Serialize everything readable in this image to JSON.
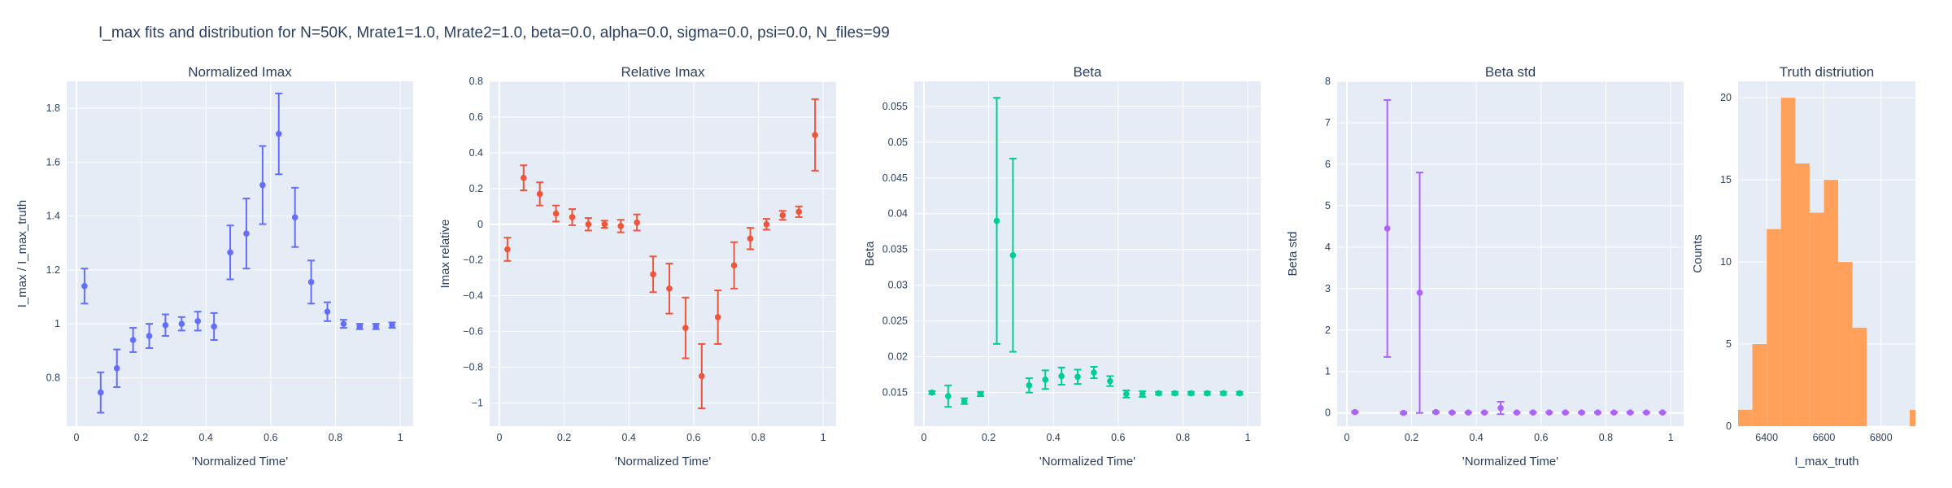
{
  "title": "I_max fits and distribution for N=50K, Mrate1=1.0, Mrate2=1.0, beta=0.0, alpha=0.0, sigma=0.0,  psi=0.0, N_files=99",
  "colors": {
    "background": "#e5ecf6",
    "grid": "#ffffff",
    "text": "#2a3f5f"
  },
  "chart_data": [
    {
      "type": "scatter",
      "title": "Normalized Imax",
      "xlabel": "'Normalized Time'",
      "ylabel": "I_max / I_max_truth",
      "xlim": [
        -0.03,
        1.04
      ],
      "ylim": [
        0.62,
        1.9
      ],
      "xticks": [
        0,
        0.2,
        0.4,
        0.6,
        0.8,
        1
      ],
      "xtick_labels": [
        "0",
        "0.2",
        "0.4",
        "0.6",
        "0.8",
        "1"
      ],
      "yticks": [
        0.8,
        1,
        1.2,
        1.4,
        1.6,
        1.8
      ],
      "ytick_labels": [
        "0.8",
        "1",
        "1.2",
        "1.4",
        "1.6",
        "1.8"
      ],
      "color": "#636efa",
      "x": [
        0.025,
        0.075,
        0.125,
        0.175,
        0.225,
        0.275,
        0.325,
        0.375,
        0.425,
        0.475,
        0.525,
        0.575,
        0.625,
        0.675,
        0.725,
        0.775,
        0.825,
        0.875,
        0.925,
        0.975
      ],
      "y": [
        1.14,
        0.745,
        0.835,
        0.94,
        0.955,
        0.995,
        1.0,
        1.01,
        0.99,
        1.265,
        1.335,
        1.515,
        1.705,
        1.395,
        1.155,
        1.045,
        1.0,
        0.99,
        0.99,
        0.995
      ],
      "error": [
        0.065,
        0.075,
        0.07,
        0.045,
        0.045,
        0.04,
        0.025,
        0.035,
        0.05,
        0.1,
        0.13,
        0.145,
        0.15,
        0.11,
        0.08,
        0.035,
        0.015,
        0.01,
        0.01,
        0.01
      ]
    },
    {
      "type": "scatter",
      "title": "Relative Imax",
      "xlabel": "'Normalized Time'",
      "ylabel": "Imax relative",
      "xlim": [
        -0.03,
        1.04
      ],
      "ylim": [
        -1.13,
        0.8
      ],
      "xticks": [
        0,
        0.2,
        0.4,
        0.6,
        0.8,
        1
      ],
      "xtick_labels": [
        "0",
        "0.2",
        "0.4",
        "0.6",
        "0.8",
        "1"
      ],
      "yticks": [
        -1,
        -0.8,
        -0.6,
        -0.4,
        -0.2,
        0,
        0.2,
        0.4,
        0.6,
        0.8
      ],
      "ytick_labels": [
        "−1",
        "−0.8",
        "−0.6",
        "−0.4",
        "−0.2",
        "0",
        "0.2",
        "0.4",
        "0.6",
        "0.8"
      ],
      "color": "#ef553b",
      "x": [
        0.025,
        0.075,
        0.125,
        0.175,
        0.225,
        0.275,
        0.325,
        0.375,
        0.425,
        0.475,
        0.525,
        0.575,
        0.625,
        0.675,
        0.725,
        0.775,
        0.825,
        0.875,
        0.925,
        0.975
      ],
      "y": [
        -0.14,
        0.26,
        0.17,
        0.06,
        0.04,
        0.0,
        0.0,
        -0.01,
        0.01,
        -0.28,
        -0.36,
        -0.58,
        -0.85,
        -0.52,
        -0.23,
        -0.08,
        0.0,
        0.05,
        0.07,
        0.5
      ],
      "error": [
        0.065,
        0.07,
        0.065,
        0.045,
        0.045,
        0.035,
        0.02,
        0.035,
        0.045,
        0.1,
        0.14,
        0.17,
        0.18,
        0.15,
        0.13,
        0.06,
        0.03,
        0.025,
        0.03,
        0.2
      ]
    },
    {
      "type": "scatter",
      "title": "Beta",
      "xlabel": "'Normalized Time'",
      "ylabel": "Beta",
      "xlim": [
        -0.03,
        1.04
      ],
      "ylim": [
        0.0103,
        0.0585
      ],
      "xticks": [
        0,
        0.2,
        0.4,
        0.6,
        0.8,
        1
      ],
      "xtick_labels": [
        "0",
        "0.2",
        "0.4",
        "0.6",
        "0.8",
        "1"
      ],
      "yticks": [
        0.015,
        0.02,
        0.025,
        0.03,
        0.035,
        0.04,
        0.045,
        0.05,
        0.055
      ],
      "ytick_labels": [
        "0.015",
        "0.02",
        "0.025",
        "0.03",
        "0.035",
        "0.04",
        "0.045",
        "0.05",
        "0.055"
      ],
      "color": "#00cc96",
      "x": [
        0.025,
        0.075,
        0.125,
        0.175,
        0.225,
        0.275,
        0.325,
        0.375,
        0.425,
        0.475,
        0.525,
        0.575,
        0.625,
        0.675,
        0.725,
        0.775,
        0.825,
        0.875,
        0.925,
        0.975
      ],
      "y": [
        0.015,
        0.0145,
        0.0138,
        0.0148,
        0.039,
        0.0342,
        0.016,
        0.0168,
        0.0173,
        0.0172,
        0.0178,
        0.0166,
        0.0148,
        0.0148,
        0.0149,
        0.0149,
        0.0149,
        0.0149,
        0.0149,
        0.0149
      ],
      "error": [
        0.0002,
        0.0015,
        0.0004,
        0.0003,
        0.0172,
        0.0135,
        0.001,
        0.0013,
        0.0012,
        0.001,
        0.0008,
        0.0007,
        0.0005,
        0.0004,
        0.0002,
        0.0002,
        0.0002,
        0.0002,
        0.0002,
        0.0002
      ]
    },
    {
      "type": "scatter",
      "title": "Beta std",
      "xlabel": "'Normalized Time'",
      "ylabel": "Beta std",
      "xlim": [
        -0.03,
        1.04
      ],
      "ylim": [
        -0.32,
        8.0
      ],
      "xticks": [
        0,
        0.2,
        0.4,
        0.6,
        0.8,
        1
      ],
      "xtick_labels": [
        "0",
        "0.2",
        "0.4",
        "0.6",
        "0.8",
        "1"
      ],
      "yticks": [
        0,
        1,
        2,
        3,
        4,
        5,
        6,
        7,
        8
      ],
      "ytick_labels": [
        "0",
        "1",
        "2",
        "3",
        "4",
        "5",
        "6",
        "7",
        "8"
      ],
      "color": "#ab63fa",
      "x": [
        0.025,
        0.125,
        0.175,
        0.225,
        0.275,
        0.325,
        0.375,
        0.425,
        0.475,
        0.525,
        0.575,
        0.625,
        0.675,
        0.725,
        0.775,
        0.825,
        0.875,
        0.925,
        0.975
      ],
      "y": [
        0.02,
        4.45,
        0.0,
        2.9,
        0.02,
        0.01,
        0.01,
        0.01,
        0.12,
        0.01,
        0.01,
        0.01,
        0.01,
        0.01,
        0.01,
        0.01,
        0.01,
        0.01,
        0.01
      ],
      "error": [
        0.02,
        3.1,
        0.02,
        2.9,
        0.02,
        0.01,
        0.01,
        0.01,
        0.15,
        0.01,
        0.01,
        0.01,
        0.01,
        0.01,
        0.01,
        0.01,
        0.01,
        0.01,
        0.01
      ]
    },
    {
      "type": "bar",
      "title": "Truth distriution",
      "xlabel": "I_max_truth",
      "ylabel": "Counts",
      "xlim": [
        6300,
        6920
      ],
      "ylim": [
        0,
        21
      ],
      "xticks": [
        6400,
        6600,
        6800
      ],
      "xtick_labels": [
        "6400",
        "6600",
        "6800"
      ],
      "yticks": [
        0,
        5,
        10,
        15,
        20
      ],
      "ytick_labels": [
        "0",
        "5",
        "10",
        "15",
        "20"
      ],
      "color": "#ffa15a",
      "bin_width": 50,
      "bins": [
        6300,
        6350,
        6400,
        6450,
        6500,
        6550,
        6600,
        6650,
        6700,
        6750,
        6800,
        6850,
        6900
      ],
      "counts": [
        1,
        5,
        12,
        20,
        16,
        13,
        15,
        10,
        6,
        0,
        0,
        0,
        1
      ]
    }
  ]
}
